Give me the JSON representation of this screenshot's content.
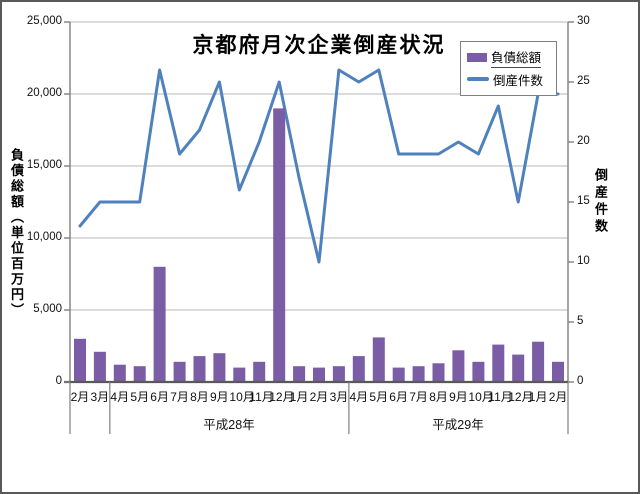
{
  "title": "京都府月次企業倒産状況",
  "legend": [
    {
      "label": "負債総額",
      "type": "bar",
      "color": "#7a5da4"
    },
    {
      "label": "倒産件数",
      "type": "line",
      "color": "#4f81bd"
    }
  ],
  "y_left": {
    "title": "負債総額（単位百万円）",
    "ticks": [
      "0",
      "5,000",
      "10,000",
      "15,000",
      "20,000",
      "25,000"
    ],
    "tick_values": [
      0,
      5000,
      10000,
      15000,
      20000,
      25000
    ],
    "min": 0,
    "max": 25000
  },
  "y_right": {
    "title": "倒産件数",
    "ticks": [
      "0",
      "5",
      "10",
      "15",
      "20",
      "25",
      "30"
    ],
    "tick_values": [
      0,
      5,
      10,
      15,
      20,
      25,
      30
    ],
    "min": 0,
    "max": 30
  },
  "x_groups": [
    {
      "label": "",
      "months": [
        "2月",
        "3月"
      ]
    },
    {
      "label": "平成28年",
      "months": [
        "4月",
        "5月",
        "6月",
        "7月",
        "8月",
        "9月",
        "10月",
        "11月",
        "12月",
        "1月",
        "2月",
        "3月"
      ]
    },
    {
      "label": "平成29年",
      "months": [
        "4月",
        "5月",
        "6月",
        "7月",
        "8月",
        "9月",
        "10月",
        "11月",
        "12月",
        "1月",
        "2月"
      ]
    }
  ],
  "colors": {
    "bar": "#7a5da4",
    "line": "#4f81bd",
    "gridline": "#c6c6c6",
    "axis": "#7f7f7f",
    "baseline": "#595959"
  },
  "chart_data": {
    "type": "bar+line",
    "title": "京都府月次企業倒産状況",
    "categories": [
      "2月",
      "3月",
      "4月",
      "5月",
      "6月",
      "7月",
      "8月",
      "9月",
      "10月",
      "11月",
      "12月",
      "1月",
      "2月",
      "3月",
      "4月",
      "5月",
      "6月",
      "7月",
      "8月",
      "9月",
      "10月",
      "11月",
      "12月",
      "1月",
      "2月"
    ],
    "year_groups": [
      {
        "label": "",
        "start": 0,
        "count": 2
      },
      {
        "label": "平成28年",
        "start": 2,
        "count": 12
      },
      {
        "label": "平成29年",
        "start": 14,
        "count": 11
      }
    ],
    "series": [
      {
        "name": "負債総額",
        "type": "bar",
        "axis": "left",
        "unit": "百万円",
        "color": "#7a5da4",
        "values": [
          3000,
          2100,
          1200,
          1100,
          8000,
          1400,
          1800,
          2000,
          1000,
          1400,
          19000,
          1100,
          1000,
          1100,
          1800,
          3100,
          1000,
          1100,
          1300,
          2200,
          1400,
          2600,
          1900,
          2800,
          1400
        ]
      },
      {
        "name": "倒産件数",
        "type": "line",
        "axis": "right",
        "unit": "件",
        "color": "#4f81bd",
        "values": [
          13,
          15,
          15,
          15,
          26,
          19,
          21,
          25,
          16,
          20,
          25,
          17,
          10,
          26,
          25,
          26,
          19,
          19,
          19,
          20,
          19,
          23,
          15,
          24,
          24
        ]
      }
    ],
    "ylim_left": [
      0,
      25000
    ],
    "ylim_right": [
      0,
      30
    ],
    "grid": true,
    "legend_position": "top-right"
  }
}
